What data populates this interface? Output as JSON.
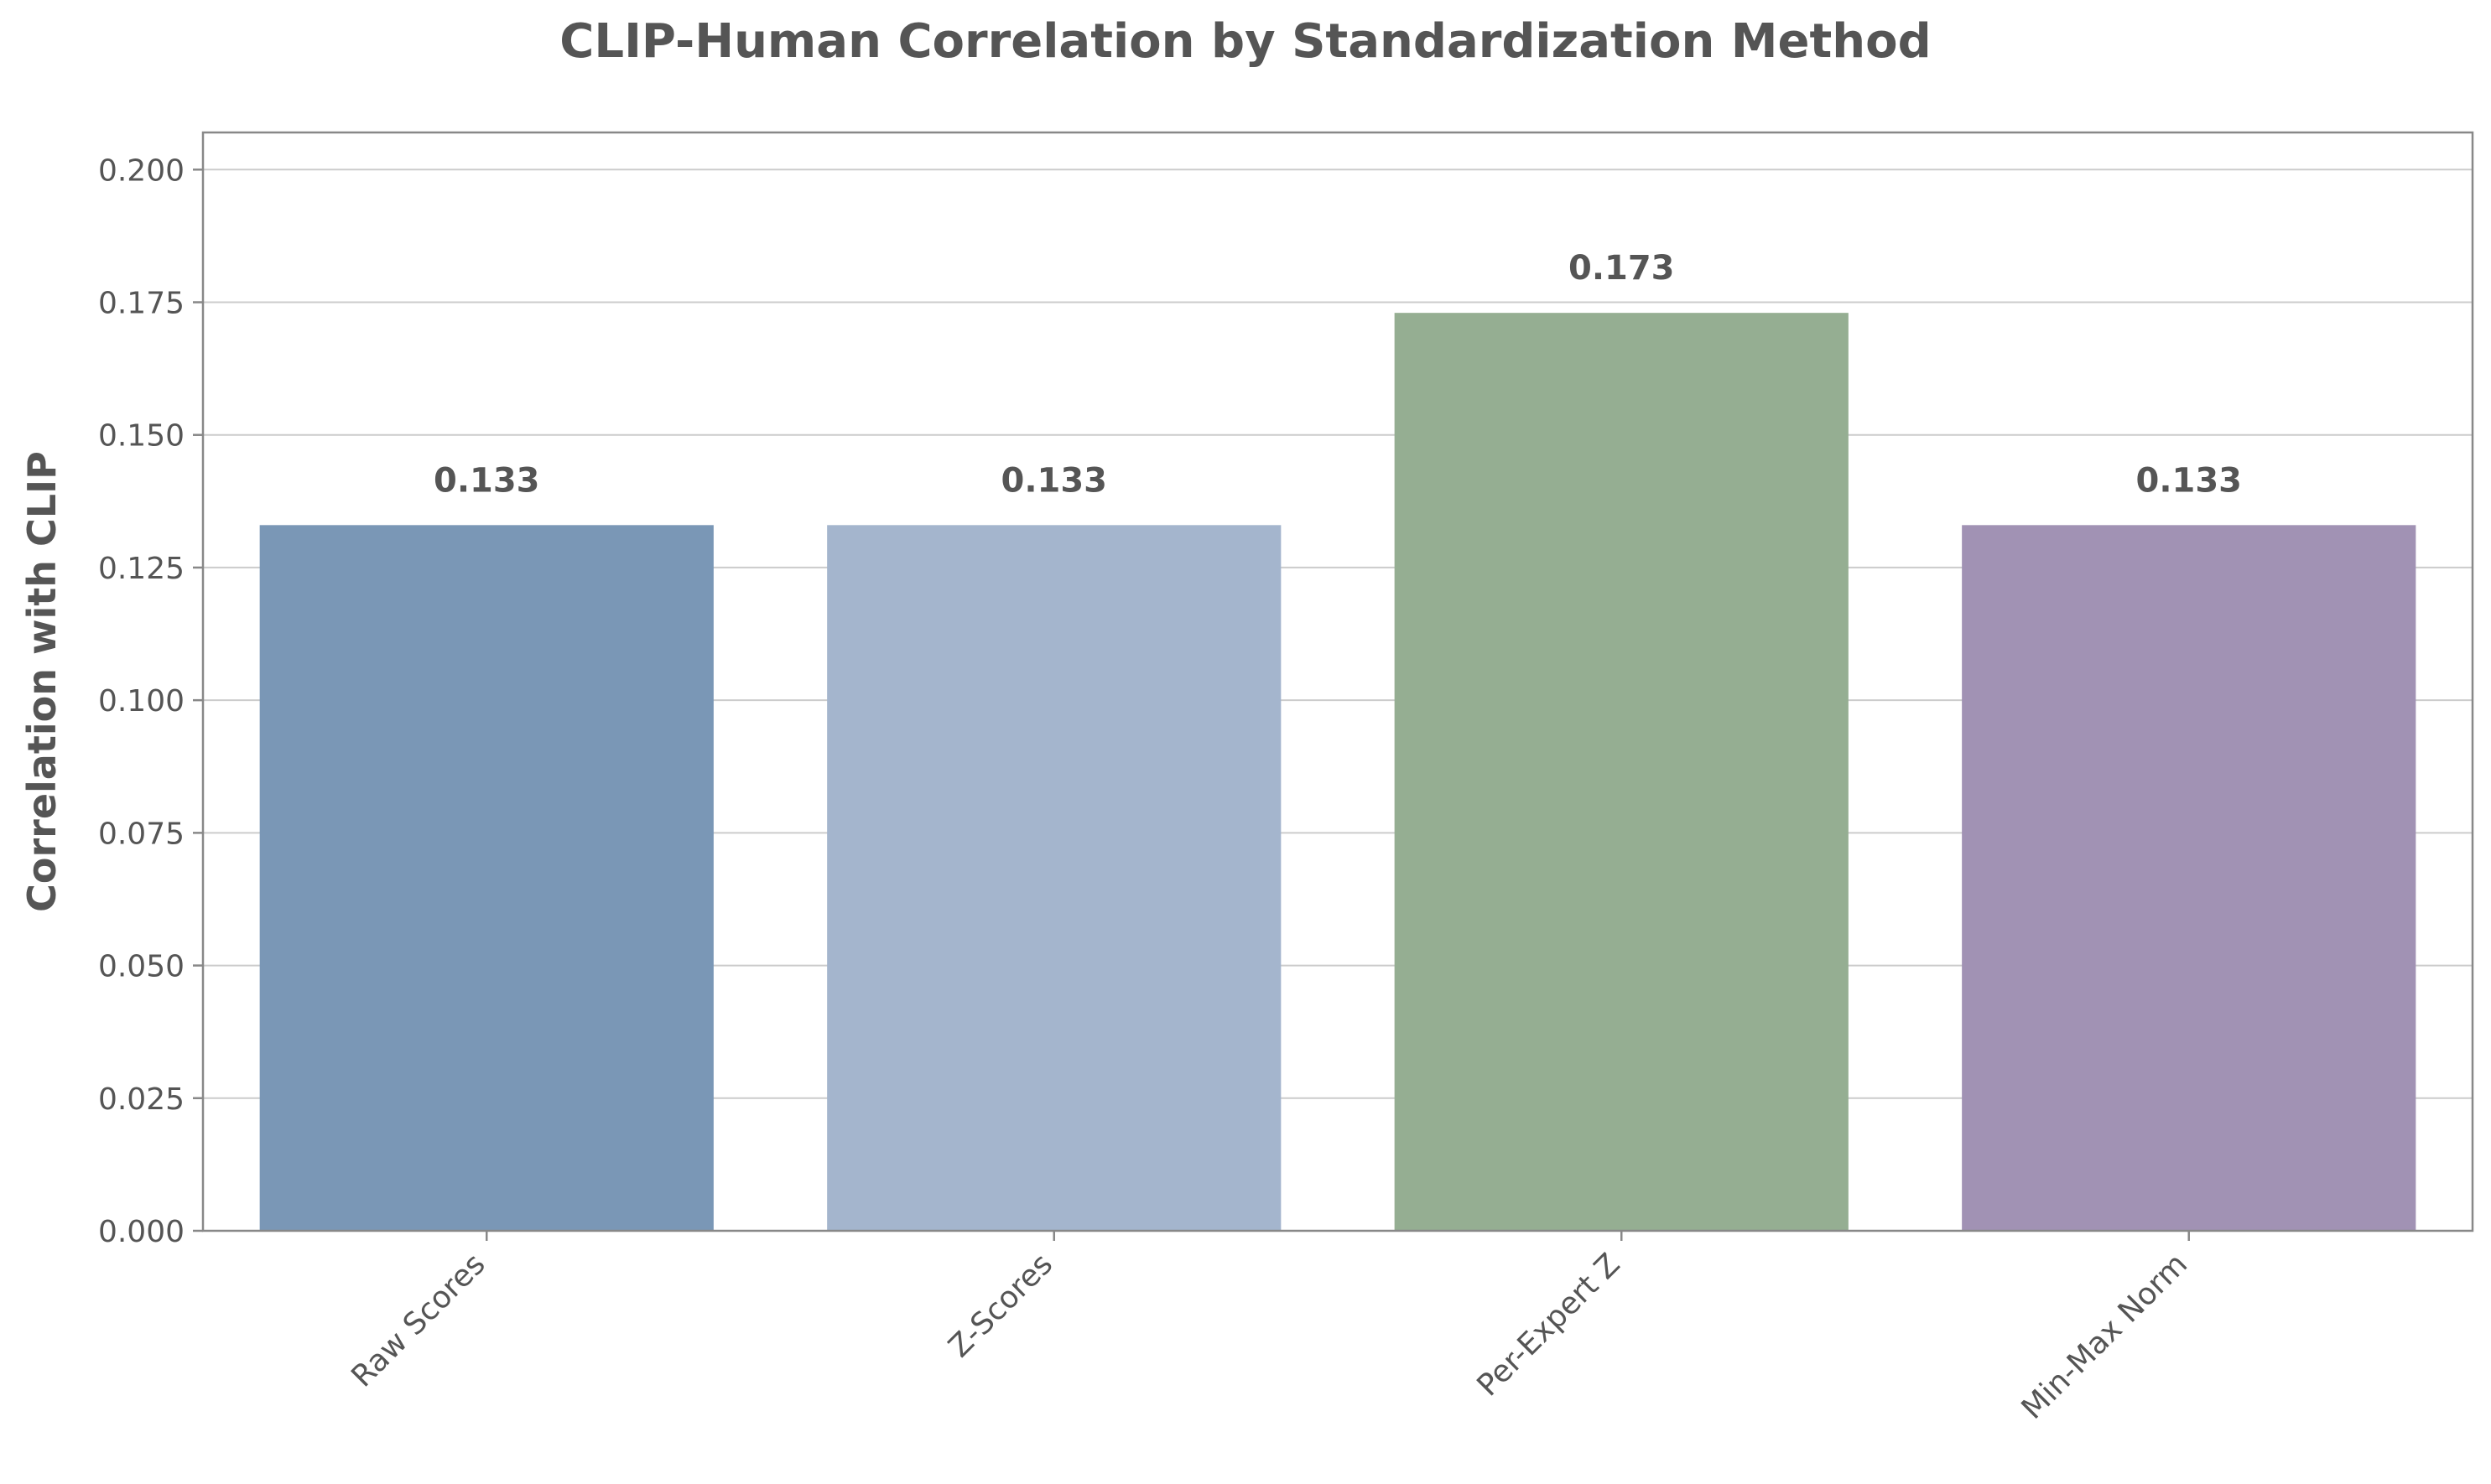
{
  "chart_data": {
    "type": "bar",
    "title": "CLIP-Human Correlation by Standardization Method",
    "xlabel": "",
    "ylabel": "Correlation with CLIP",
    "categories": [
      "Raw Scores",
      "Z-Scores",
      "Per-Expert Z",
      "Min-Max Norm"
    ],
    "values": [
      0.133,
      0.133,
      0.173,
      0.133
    ],
    "value_labels": [
      "0.133",
      "0.133",
      "0.173",
      "0.133"
    ],
    "colors": [
      "#7a97b6",
      "#a4b5cd",
      "#95ae92",
      "#a192b4"
    ],
    "ylim": [
      0,
      0.207
    ],
    "yticks": [
      0.0,
      0.025,
      0.05,
      0.075,
      0.1,
      0.125,
      0.15,
      0.175,
      0.2
    ],
    "ytick_labels": [
      "0.000",
      "0.025",
      "0.050",
      "0.075",
      "0.100",
      "0.125",
      "0.150",
      "0.175",
      "0.200"
    ],
    "grid": "y",
    "legend": "none"
  }
}
